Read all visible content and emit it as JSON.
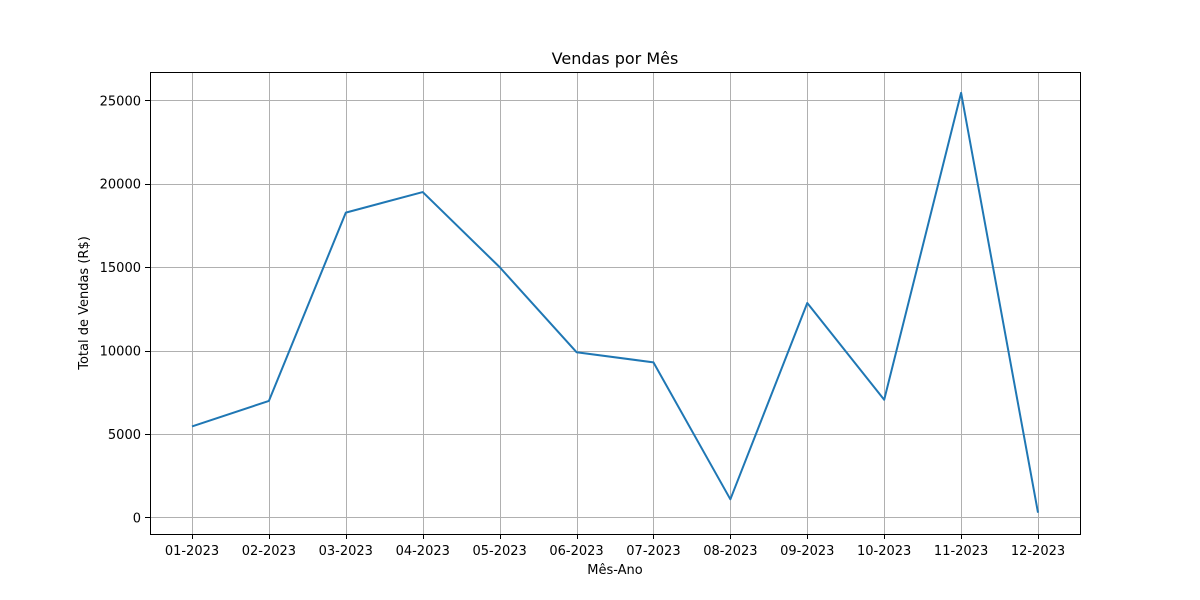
{
  "chart_data": {
    "type": "line",
    "title": "Vendas por Mês",
    "xlabel": "Mês-Ano",
    "ylabel": "Total de Vendas (R$)",
    "categories": [
      "01-2023",
      "02-2023",
      "03-2023",
      "04-2023",
      "05-2023",
      "06-2023",
      "07-2023",
      "08-2023",
      "09-2023",
      "10-2023",
      "11-2023",
      "12-2023"
    ],
    "series": [
      {
        "values": [
          5450,
          6980,
          18270,
          19500,
          15000,
          9900,
          9290,
          1080,
          12850,
          7050,
          25450,
          280
        ],
        "color": "#1f77b4"
      }
    ],
    "y_ticks": [
      0,
      5000,
      10000,
      15000,
      20000,
      25000
    ],
    "ylim": [
      -1000,
      26700
    ],
    "grid": true,
    "legend": "none"
  }
}
